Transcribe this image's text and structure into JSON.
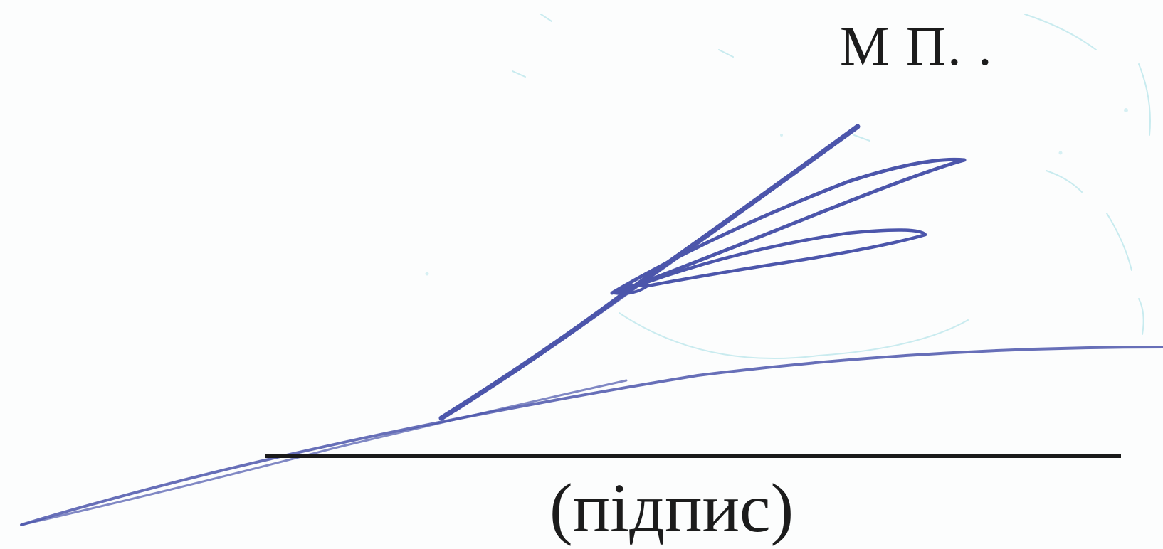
{
  "stamp_abbreviation": "М П. .",
  "signature_caption": "(підпис)",
  "colors": {
    "paper": "#fcfdfd",
    "ink_text": "#1c1c1c",
    "signature_ink": "#4a55a8",
    "stamp_ink": "#8fd6df"
  },
  "handwritten_signature": "signature-scribble-icon"
}
